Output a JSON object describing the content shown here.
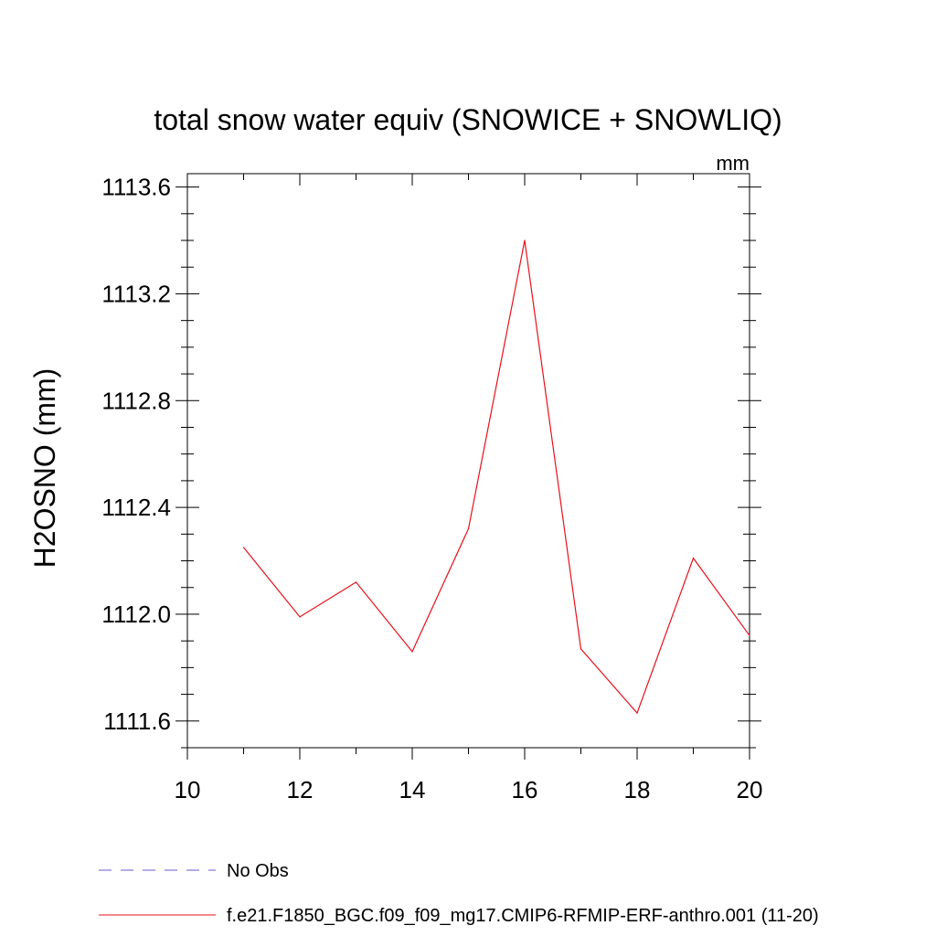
{
  "chart_data": {
    "type": "line",
    "title": "total snow water equiv (SNOWICE + SNOWLIQ)",
    "units": "mm",
    "xlabel": "",
    "ylabel": "H2OSNO  (mm)",
    "xlim": [
      10,
      20
    ],
    "ylim": [
      1111.5,
      1113.65
    ],
    "x_ticks": [
      10,
      12,
      14,
      16,
      18,
      20
    ],
    "x_tick_labels": [
      "10",
      "12",
      "14",
      "16",
      "18",
      "20"
    ],
    "y_ticks": [
      1111.6,
      1112.0,
      1112.4,
      1112.8,
      1113.2,
      1113.6
    ],
    "y_tick_labels": [
      "1111.6",
      "1112.0",
      "1112.4",
      "1112.8",
      "1113.2",
      "1113.6"
    ],
    "grid": false,
    "legend_position": "bottom",
    "series": [
      {
        "name": "No Obs",
        "color": "#6a5acd",
        "dash": "dashed",
        "x": [],
        "y": []
      },
      {
        "name": "f.e21.F1850_BGC.f09_f09_mg17.CMIP6-RFMIP-ERF-anthro.001 (11-20)",
        "color": "#e8101b",
        "dash": "solid",
        "x": [
          11,
          12,
          13,
          14,
          15,
          16,
          17,
          18,
          19,
          20
        ],
        "y": [
          1112.25,
          1111.99,
          1112.12,
          1111.86,
          1112.32,
          1113.4,
          1111.87,
          1111.63,
          1112.21,
          1111.92
        ]
      }
    ]
  }
}
